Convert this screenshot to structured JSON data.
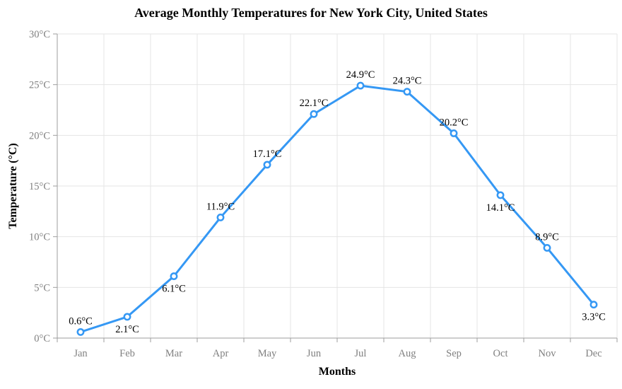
{
  "chart_data": {
    "type": "line",
    "title": "Average Monthly Temperatures for New York City, United States",
    "xlabel": "Months",
    "ylabel": "Temperature (°C)",
    "categories": [
      "Jan",
      "Feb",
      "Mar",
      "Apr",
      "May",
      "Jun",
      "Jul",
      "Aug",
      "Sep",
      "Oct",
      "Nov",
      "Dec"
    ],
    "values": [
      0.6,
      2.1,
      6.1,
      11.9,
      17.1,
      22.1,
      24.9,
      24.3,
      20.2,
      14.1,
      8.9,
      3.3
    ],
    "point_labels": [
      "0.6°C",
      "2.1°C",
      "6.1°C",
      "11.9°C",
      "17.1°C",
      "22.1°C",
      "24.9°C",
      "24.3°C",
      "20.2°C",
      "14.1°C",
      "8.9°C",
      "3.3°C"
    ],
    "point_label_positions": [
      "above",
      "below",
      "below",
      "above",
      "above",
      "above",
      "above",
      "above",
      "above",
      "below",
      "above",
      "below"
    ],
    "y_tick_values": [
      0,
      5,
      10,
      15,
      20,
      25,
      30
    ],
    "y_tick_labels": [
      "0°C",
      "5°C",
      "10°C",
      "15°C",
      "20°C",
      "25°C",
      "30°C"
    ],
    "ylim": [
      0,
      30
    ],
    "grid": true,
    "legend": "none",
    "colors": {
      "line": "#3598f4",
      "marker_fill": "#ffffff",
      "grid": "#e5e5e5",
      "axis": "#9e9e9e",
      "tick_label": "#808080",
      "data_label": "#000000",
      "title": "#000000"
    }
  }
}
